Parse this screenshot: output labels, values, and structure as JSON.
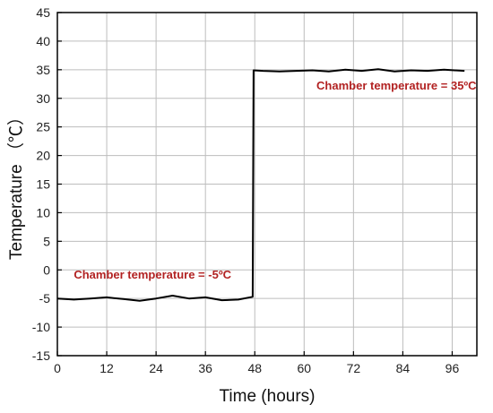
{
  "chart_data": {
    "type": "line",
    "title": "",
    "xlabel": "Time (hours)",
    "ylabel": "Temperature （℃）",
    "xlim": [
      0,
      102
    ],
    "ylim": [
      -15,
      45
    ],
    "xticks": [
      0,
      12,
      24,
      36,
      48,
      60,
      72,
      84,
      96
    ],
    "yticks": [
      -15,
      -10,
      -5,
      0,
      5,
      10,
      15,
      20,
      25,
      30,
      35,
      40,
      45
    ],
    "grid": true,
    "line_color": "#000000",
    "annotation_color": "#b22222",
    "annotations": [
      {
        "text": "Chamber temperature = -5ºC",
        "x": 4,
        "y": -1.5
      },
      {
        "text": "Chamber temperature = 35ºC",
        "x": 63,
        "y": 31.5
      }
    ],
    "series": [
      {
        "x": [
          0,
          4,
          8,
          12,
          16,
          20,
          24,
          28,
          32,
          36,
          40,
          44,
          47.5,
          47.7,
          50,
          54,
          58,
          62,
          66,
          70,
          74,
          78,
          82,
          86,
          90,
          94,
          99
        ],
        "y": [
          -5.0,
          -5.2,
          -5.0,
          -4.8,
          -5.1,
          -5.4,
          -5.0,
          -4.5,
          -5.0,
          -4.8,
          -5.3,
          -5.2,
          -4.7,
          34.9,
          34.8,
          34.7,
          34.8,
          34.9,
          34.7,
          35.0,
          34.8,
          35.1,
          34.7,
          34.9,
          34.8,
          35.0,
          34.8
        ]
      }
    ]
  }
}
